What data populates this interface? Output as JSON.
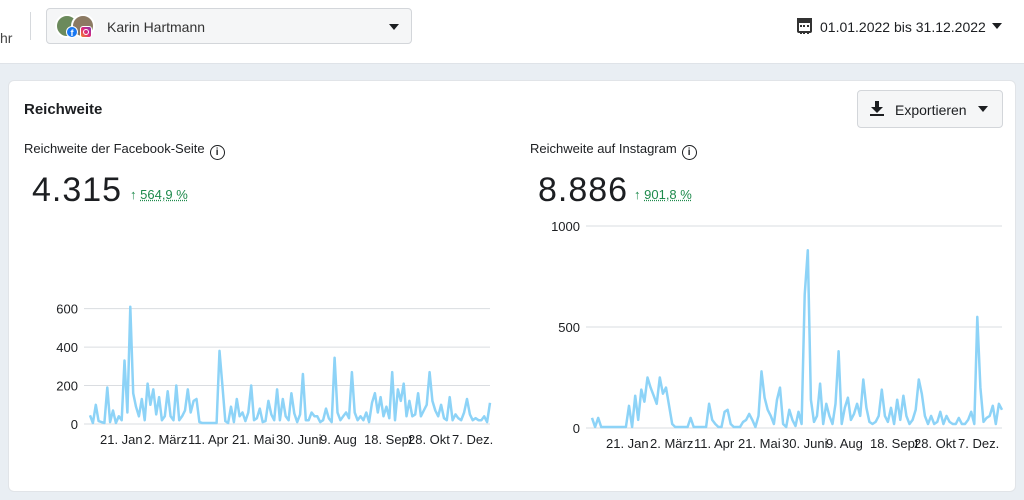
{
  "header": {
    "cut_text": "hr",
    "account_name": "Karin Hartmann",
    "date_range": "01.01.2022 bis 31.12.2022",
    "icons": {
      "calendar": "calendar-icon",
      "facebook": "facebook-badge-icon",
      "instagram": "instagram-badge-icon"
    }
  },
  "card": {
    "title": "Reichweite",
    "export_label": "Exportieren"
  },
  "colors": {
    "series": "#8dd3f7",
    "positive": "#1e8a4c",
    "grid": "#dadde1"
  },
  "panels": [
    {
      "title": "Reichweite der Facebook-Seite",
      "value": "4.315",
      "change": "564,9 %",
      "arrow": "↑"
    },
    {
      "title": "Reichweite auf Instagram",
      "value": "8.886",
      "change": "901,8 %",
      "arrow": "↑"
    }
  ],
  "chart_data": [
    {
      "type": "line",
      "series": [
        {
          "values": [
            45,
            5,
            100,
            15,
            10,
            5,
            190,
            10,
            70,
            5,
            40,
            20,
            330,
            60,
            610,
            160,
            90,
            40,
            130,
            20,
            210,
            100,
            180,
            50,
            140,
            20,
            40,
            170,
            40,
            20,
            200,
            20,
            40,
            70,
            180,
            60,
            120,
            130,
            10,
            5,
            5,
            5,
            5,
            5,
            5,
            380,
            200,
            15,
            5,
            90,
            10,
            130,
            40,
            60,
            15,
            60,
            200,
            20,
            30,
            80,
            10,
            15,
            120,
            50,
            20,
            180,
            20,
            130,
            40,
            20,
            160,
            55,
            10,
            50,
            260,
            20,
            20,
            60,
            40,
            40,
            10,
            20,
            80,
            30,
            10,
            345,
            60,
            20,
            40,
            60,
            30,
            270,
            60,
            20,
            40,
            20,
            60,
            10,
            110,
            160,
            60,
            140,
            40,
            90,
            30,
            270,
            20,
            180,
            120,
            210,
            40,
            120,
            40,
            50,
            160,
            40,
            70,
            100,
            270,
            120,
            70,
            40,
            100,
            30,
            20,
            140,
            20,
            50,
            30,
            20,
            60,
            130,
            50,
            20,
            30,
            20,
            20,
            40,
            10,
            110
          ]
        }
      ],
      "x_tick_labels": [
        "21. Jan",
        "2. März",
        "11. Apr",
        "21. Mai",
        "30. Juni",
        "9. Aug",
        "18. Sept",
        "28. Okt",
        "7. Dez."
      ],
      "y_ticks": [
        0,
        200,
        400,
        600
      ],
      "ylim": [
        0,
        650
      ],
      "grid": true
    },
    {
      "type": "line",
      "series": [
        {
          "values": [
            50,
            5,
            50,
            5,
            5,
            5,
            5,
            5,
            5,
            5,
            5,
            5,
            110,
            5,
            160,
            40,
            190,
            130,
            250,
            200,
            160,
            120,
            250,
            170,
            200,
            110,
            20,
            5,
            5,
            5,
            5,
            5,
            50,
            5,
            5,
            5,
            5,
            5,
            120,
            40,
            20,
            5,
            5,
            80,
            90,
            20,
            5,
            5,
            5,
            30,
            40,
            70,
            40,
            5,
            60,
            280,
            150,
            90,
            60,
            20,
            140,
            200,
            20,
            5,
            90,
            40,
            10,
            80,
            20,
            660,
            880,
            140,
            30,
            60,
            220,
            20,
            120,
            60,
            20,
            120,
            380,
            20,
            100,
            150,
            40,
            70,
            120,
            60,
            240,
            100,
            30,
            20,
            30,
            60,
            190,
            60,
            30,
            100,
            20,
            140,
            40,
            160,
            60,
            20,
            40,
            90,
            240,
            170,
            60,
            20,
            60,
            20,
            30,
            80,
            20,
            60,
            30,
            20,
            20,
            50,
            20,
            20,
            40,
            80,
            20,
            550,
            200,
            30,
            50,
            60,
            110,
            20,
            120,
            90
          ]
        }
      ],
      "x_tick_labels": [
        "21. Jan",
        "2. März",
        "11. Apr",
        "21. Mai",
        "30. Juni",
        "9. Aug",
        "18. Sept",
        "28. Okt",
        "7. Dez."
      ],
      "y_ticks": [
        0,
        500,
        1000
      ],
      "ylim": [
        0,
        1000
      ],
      "grid": true
    }
  ]
}
